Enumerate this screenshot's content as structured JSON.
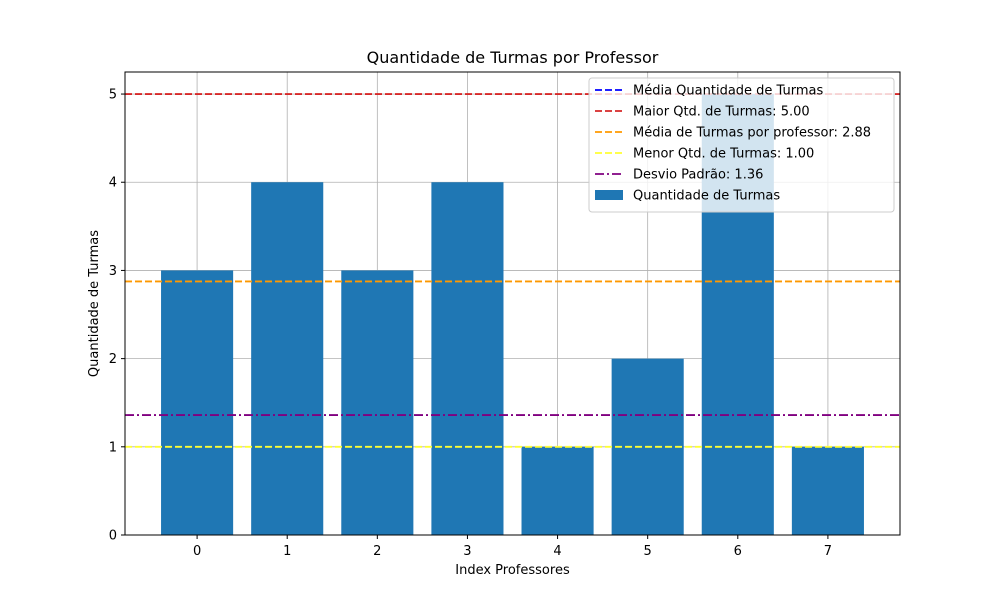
{
  "chart_data": {
    "type": "bar",
    "title": "Quantidade de Turmas por Professor",
    "xlabel": "Index Professores",
    "ylabel": "Quantidade de Turmas",
    "categories": [
      "0",
      "1",
      "2",
      "3",
      "4",
      "5",
      "6",
      "7"
    ],
    "x": [
      0,
      1,
      2,
      3,
      4,
      5,
      6,
      7
    ],
    "xlim": [
      -0.8,
      7.8
    ],
    "ylim": [
      0,
      5.25
    ],
    "yticks": [
      "0",
      "1",
      "2",
      "3",
      "4",
      "5"
    ],
    "grid": true,
    "legend_position": "top-right",
    "series": [
      {
        "name": "Quantidade de Turmas",
        "values": [
          3,
          4,
          3,
          4,
          1,
          2,
          5,
          1
        ],
        "color": "#1f77b4"
      }
    ],
    "reference_lines": [
      {
        "label": "Média Quantidade de Turmas",
        "value": 2.875,
        "color": "#0000ff",
        "style": "dashed",
        "visible": false
      },
      {
        "label": "Maior Qtd. de Turmas: 5.00",
        "value": 5.0,
        "color": "#d62728",
        "style": "dashed",
        "visible": true
      },
      {
        "label": "Média de Turmas por professor: 2.88",
        "value": 2.875,
        "color": "#ff9900",
        "style": "dashed",
        "visible": true
      },
      {
        "label": "Menor Qtd. de Turmas: 1.00",
        "value": 1.0,
        "color": "#ffff33",
        "style": "dashed",
        "visible": true
      },
      {
        "label": "Desvio Padrão: 1.36",
        "value": 1.36,
        "color": "#800080",
        "style": "dashdot",
        "visible": true
      }
    ]
  }
}
